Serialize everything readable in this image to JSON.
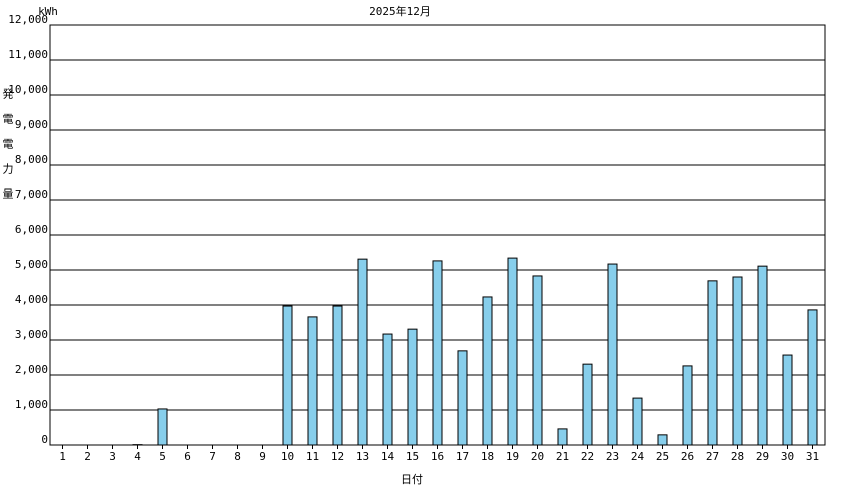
{
  "chart_data": {
    "type": "bar",
    "title": "2025年12月",
    "unit": "kWh",
    "y_label": "発電電力量",
    "x_label": "日付",
    "categories": [
      "1",
      "2",
      "3",
      "4",
      "5",
      "6",
      "7",
      "8",
      "9",
      "10",
      "11",
      "12",
      "13",
      "14",
      "15",
      "16",
      "17",
      "18",
      "19",
      "20",
      "21",
      "22",
      "23",
      "24",
      "25",
      "26",
      "27",
      "28",
      "29",
      "30",
      "31"
    ],
    "values": [
      0,
      0,
      0,
      10,
      1030,
      0,
      0,
      0,
      0,
      3970,
      3660,
      3970,
      5310,
      3170,
      3310,
      5260,
      2690,
      4230,
      5340,
      4830,
      460,
      2310,
      5170,
      1340,
      290,
      2260,
      4690,
      4800,
      5110,
      2570,
      3860
    ],
    "color": "#87ceeb",
    "ylim": [
      0,
      12000
    ],
    "yticks": [
      0,
      {
        "value": 1000,
        "label": "1,000"
      },
      {
        "value": 2000,
        "label": "2,000"
      },
      {
        "value": 3000,
        "label": "3,000"
      },
      {
        "value": 4000,
        "label": "4,000"
      },
      {
        "value": 5000,
        "label": "5,000"
      },
      {
        "value": 6000,
        "label": "6,000"
      },
      {
        "value": 7000,
        "label": "7,000"
      },
      {
        "value": 8000,
        "label": "8,000"
      },
      {
        "value": 9000,
        "label": "9,000"
      },
      {
        "value": 10000,
        "label": "10,000"
      },
      {
        "value": 11000,
        "label": "11,000"
      },
      {
        "value": 12000,
        "label": "12,000"
      }
    ],
    "grid": true
  }
}
